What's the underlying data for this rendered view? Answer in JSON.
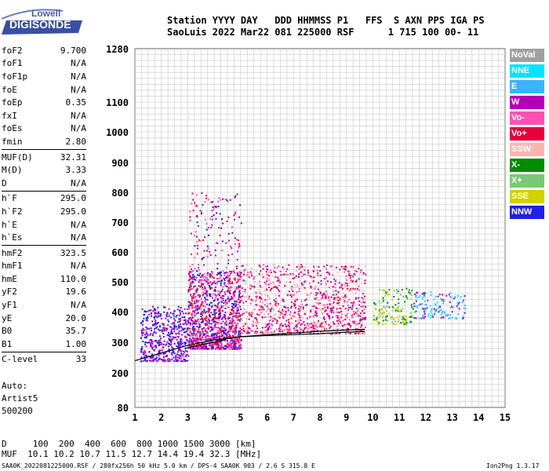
{
  "logo": {
    "line1": "Lowell",
    "line2": "DIGISONDE"
  },
  "header": {
    "line1": "Station YYYY DAY   DDD HHMMSS P1   FFS  S AXN PPS IGA PS",
    "line2": "SaoLuis 2022 Mar22 081 225000 RSF      1 715 100 00- 11"
  },
  "params": [
    {
      "name": "foF2",
      "value": "9.700"
    },
    {
      "name": "foF1",
      "value": "N/A"
    },
    {
      "name": "foF1p",
      "value": "N/A"
    },
    {
      "name": "foE",
      "value": "N/A"
    },
    {
      "name": "foEp",
      "value": "0.35"
    },
    {
      "name": "fxI",
      "value": "N/A"
    },
    {
      "name": "foEs",
      "value": "N/A"
    },
    {
      "name": "fmin",
      "value": "2.80"
    },
    {
      "name": "MUF(D)",
      "value": "32.31"
    },
    {
      "name": "M(D)",
      "value": "3.33"
    },
    {
      "name": "D",
      "value": "N/A"
    },
    {
      "name": "h`F",
      "value": "295.0"
    },
    {
      "name": "h`F2",
      "value": "295.0"
    },
    {
      "name": "h`E",
      "value": "N/A"
    },
    {
      "name": "h`Es",
      "value": "N/A"
    },
    {
      "name": "hmF2",
      "value": "323.5"
    },
    {
      "name": "hmF1",
      "value": "N/A"
    },
    {
      "name": "hmE",
      "value": "110.0"
    },
    {
      "name": "yF2",
      "value": "19.6"
    },
    {
      "name": "yF1",
      "value": "N/A"
    },
    {
      "name": "yE",
      "value": "20.0"
    },
    {
      "name": "B0",
      "value": "35.7"
    },
    {
      "name": "B1",
      "value": "1.00"
    },
    {
      "name": "C-level",
      "value": "33"
    }
  ],
  "autoscale": {
    "line1": "Auto:",
    "line2": "Artist5",
    "line3": "500200"
  },
  "legend": [
    {
      "label": "NoVal",
      "color": "#a0a0a0"
    },
    {
      "label": "NNE",
      "color": "#00e5ff"
    },
    {
      "label": "E",
      "color": "#3ab4ff"
    },
    {
      "label": "W",
      "color": "#b400b4"
    },
    {
      "label": "Vo-",
      "color": "#ff50b4"
    },
    {
      "label": "Vo+",
      "color": "#e6003c"
    },
    {
      "label": "SSW",
      "color": "#ffb4b4"
    },
    {
      "label": "X-",
      "color": "#008c00"
    },
    {
      "label": "X+",
      "color": "#78c878"
    },
    {
      "label": "SSE",
      "color": "#d2d200"
    },
    {
      "label": "NNW",
      "color": "#2020e6"
    }
  ],
  "bottom": {
    "line1": "D     100  200  400  600  800 1000 1500 3000 [km]",
    "line2": "MUF  10.1 10.2 10.7 11.5 12.7 14.4 19.4 32.3 [MHz]",
    "line3": "SAA0K_2022081225000.RSF / 280fx256h 50 kHz 5.0 km / DPS-4 SAA0K 903 / 2.6 S 315.8 E",
    "line4": "Ion2Png 1.3.17"
  },
  "chart_data": {
    "type": "scatter",
    "title": "",
    "xlabel": "",
    "ylabel": "",
    "xlim": [
      1,
      15
    ],
    "ylim": [
      80,
      1280
    ],
    "x_ticks": [
      1,
      2,
      3,
      4,
      5,
      6,
      7,
      8,
      9,
      10,
      11,
      12,
      13,
      14,
      15
    ],
    "y_ticks": [
      80,
      200,
      300,
      400,
      500,
      600,
      700,
      800,
      900,
      1000,
      1100,
      1280
    ],
    "y_scale": "nonlinear",
    "grid": true,
    "traces": [
      {
        "name": "",
        "points": [
          [
            1,
            240
          ],
          [
            2,
            265
          ],
          [
            3,
            290
          ],
          [
            4,
            308
          ],
          [
            5,
            318
          ],
          [
            6,
            325
          ],
          [
            7,
            330
          ],
          [
            8,
            336
          ],
          [
            9,
            340
          ],
          [
            9.7,
            342
          ]
        ]
      },
      {
        "name": "",
        "points": [
          [
            2.9,
            280
          ],
          [
            3.5,
            292
          ],
          [
            4,
            300
          ],
          [
            4.5,
            312
          ],
          [
            5,
            318
          ],
          [
            6,
            322
          ],
          [
            7,
            325
          ],
          [
            8,
            328
          ],
          [
            9,
            333
          ],
          [
            9.7,
            335
          ]
        ]
      }
    ],
    "scatter_regions": [
      {
        "x_range": [
          1.2,
          3.0
        ],
        "y_range": [
          240,
          420
        ],
        "colors": [
          "#2020e6",
          "#b400b4"
        ]
      },
      {
        "x_range": [
          3.0,
          5.0
        ],
        "y_range": [
          280,
          800
        ],
        "colors": [
          "#e6003c",
          "#ff50b4",
          "#b400b4",
          "#2020e6"
        ]
      },
      {
        "x_range": [
          5.0,
          9.7
        ],
        "y_range": [
          330,
          560
        ],
        "colors": [
          "#ff50b4",
          "#e6003c",
          "#b400b4",
          "#ffb4b4"
        ]
      },
      {
        "x_range": [
          10.0,
          11.5
        ],
        "y_range": [
          360,
          480
        ],
        "colors": [
          "#78c878",
          "#d2d200",
          "#008c00"
        ]
      },
      {
        "x_range": [
          11.5,
          13.5
        ],
        "y_range": [
          380,
          470
        ],
        "colors": [
          "#3ab4ff",
          "#00e5ff",
          "#b400b4"
        ]
      }
    ]
  }
}
